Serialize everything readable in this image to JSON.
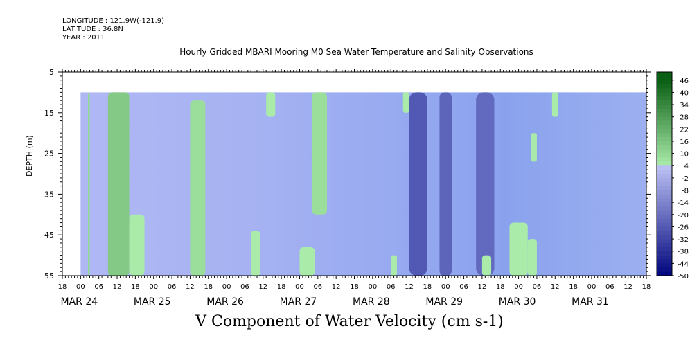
{
  "header": {
    "longitude": "LONGITUDE : 121.9W(-121.9)",
    "latitude": "LATITUDE : 36.8N",
    "year": "YEAR : 2011"
  },
  "chart_data": {
    "type": "heatmap",
    "title": "Hourly Gridded MBARI Mooring M0 Sea Water Temperature and Salinity Observations",
    "xlabel": "V Component of Water Velocity (cm s-1)",
    "ylabel": "DEPTH (m)",
    "y_ticks": [
      5,
      15,
      25,
      35,
      45,
      55
    ],
    "y_range": [
      5,
      55
    ],
    "data_depth_range": [
      10,
      55
    ],
    "x_hour_ticks": [
      "18",
      "00",
      "06",
      "12",
      "18",
      "00",
      "06",
      "12",
      "18",
      "00",
      "06",
      "12",
      "18",
      "00",
      "06",
      "12",
      "18",
      "00",
      "06",
      "12",
      "18",
      "00",
      "06",
      "12",
      "18",
      "00",
      "06",
      "12",
      "18",
      "00",
      "06",
      "12",
      "18"
    ],
    "x_day_labels": [
      "MAR 24",
      "MAR 25",
      "MAR 26",
      "MAR 27",
      "MAR 28",
      "MAR 29",
      "MAR 30",
      "MAR 31"
    ],
    "colorbar_labels": [
      "46",
      "40",
      "34",
      "28",
      "22",
      "16",
      "10",
      "4",
      "-2",
      "-8",
      "-14",
      "-20",
      "-26",
      "-32",
      "-38",
      "-44",
      "-50"
    ],
    "colorbar_range": [
      -50,
      50
    ],
    "green_bands": [
      {
        "start": "MAR 24 00",
        "end": "MAR 24 03",
        "depth_top": 10,
        "depth_bottom": 55,
        "value": 10
      },
      {
        "start": "MAR 24 09",
        "end": "MAR 24 16",
        "depth_top": 10,
        "depth_bottom": 55,
        "value": 14
      },
      {
        "start": "MAR 24 16",
        "end": "MAR 24 21",
        "depth_top": 40,
        "depth_bottom": 55,
        "value": 4
      },
      {
        "start": "MAR 25 12",
        "end": "MAR 25 17",
        "depth_top": 12,
        "depth_bottom": 55,
        "value": 8
      },
      {
        "start": "MAR 26 08",
        "end": "MAR 26 11",
        "depth_top": 44,
        "depth_bottom": 55,
        "value": 4
      },
      {
        "start": "MAR 26 13",
        "end": "MAR 26 16",
        "depth_top": 10,
        "depth_bottom": 16,
        "value": 4
      },
      {
        "start": "MAR 27 00",
        "end": "MAR 27 05",
        "depth_top": 48,
        "depth_bottom": 55,
        "value": 4
      },
      {
        "start": "MAR 27 04",
        "end": "MAR 27 09",
        "depth_top": 10,
        "depth_bottom": 40,
        "value": 8
      },
      {
        "start": "MAR 28 06",
        "end": "MAR 28 08",
        "depth_top": 50,
        "depth_bottom": 55,
        "value": 4
      },
      {
        "start": "MAR 28 10",
        "end": "MAR 28 12",
        "depth_top": 10,
        "depth_bottom": 15,
        "value": 4
      },
      {
        "start": "MAR 29 12",
        "end": "MAR 29 15",
        "depth_top": 50,
        "depth_bottom": 55,
        "value": 4
      },
      {
        "start": "MAR 29 21",
        "end": "MAR 30 03",
        "depth_top": 42,
        "depth_bottom": 55,
        "value": 4
      },
      {
        "start": "MAR 30 04",
        "end": "MAR 30 06",
        "depth_top": 20,
        "depth_bottom": 27,
        "value": 4
      },
      {
        "start": "MAR 30 03",
        "end": "MAR 30 06",
        "depth_top": 46,
        "depth_bottom": 55,
        "value": 4
      },
      {
        "start": "MAR 30 11",
        "end": "MAR 30 13",
        "depth_top": 10,
        "depth_bottom": 16,
        "value": 4
      }
    ],
    "blue_bands": [
      {
        "start": "MAR 28 12",
        "end": "MAR 28 18",
        "depth_top": 10,
        "depth_bottom": 55,
        "value": -30
      },
      {
        "start": "MAR 28 22",
        "end": "MAR 29 02",
        "depth_top": 10,
        "depth_bottom": 55,
        "value": -26
      },
      {
        "start": "MAR 29 10",
        "end": "MAR 29 16",
        "depth_top": 10,
        "depth_bottom": 55,
        "value": -24
      }
    ]
  }
}
